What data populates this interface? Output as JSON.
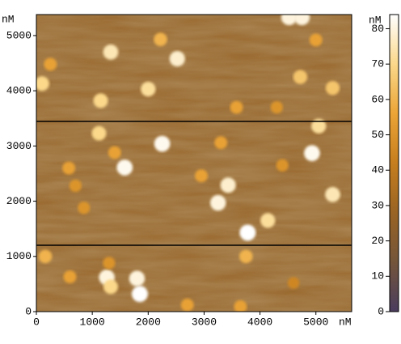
{
  "chart_data": {
    "type": "image",
    "x_label": "nM",
    "y_label": "nM",
    "colorbar_label": "nM",
    "xlim": [
      0,
      5640
    ],
    "ylim": [
      0,
      5380
    ],
    "xticks": [
      0,
      1000,
      2000,
      3000,
      4000,
      5000
    ],
    "yticks": [
      0,
      1000,
      2000,
      3000,
      4000,
      5000
    ],
    "clim": [
      0,
      84
    ],
    "cticks": [
      0,
      10,
      20,
      30,
      40,
      50,
      60,
      70,
      80
    ],
    "colormap": [
      "#4a3c5e",
      "#74553a",
      "#9a6424",
      "#c67e1e",
      "#eba436",
      "#fbd88a",
      "#ffffff"
    ],
    "x": [
      4520,
      4750,
      1330,
      2520,
      2220,
      100,
      4720,
      5300,
      2000,
      1150,
      3580,
      5000,
      4300,
      250,
      1120,
      2250,
      3300,
      4930,
      1580,
      1400,
      580,
      3430,
      3250,
      3780,
      4140,
      5300,
      2950,
      700,
      850,
      4400,
      5050,
      160,
      1260,
      1800,
      1850,
      1330,
      600,
      1300,
      3750,
      2700,
      3650,
      4600
    ],
    "y": [
      5330,
      5330,
      4700,
      4580,
      4930,
      4130,
      4250,
      4050,
      4030,
      3820,
      3700,
      4920,
      3700,
      4480,
      3230,
      3040,
      3060,
      2870,
      2610,
      2880,
      2600,
      2290,
      1970,
      1430,
      1650,
      2120,
      2460,
      2280,
      1880,
      2650,
      3360,
      1000,
      620,
      600,
      320,
      450,
      630,
      880,
      1000,
      120,
      90,
      520
    ],
    "values": [
      80,
      80,
      75,
      78,
      60,
      70,
      65,
      65,
      72,
      70,
      55,
      55,
      50,
      55,
      70,
      82,
      55,
      82,
      82,
      55,
      55,
      78,
      80,
      84,
      72,
      75,
      55,
      50,
      50,
      50,
      72,
      60,
      80,
      80,
      84,
      70,
      55,
      50,
      60,
      55,
      55,
      45
    ]
  }
}
